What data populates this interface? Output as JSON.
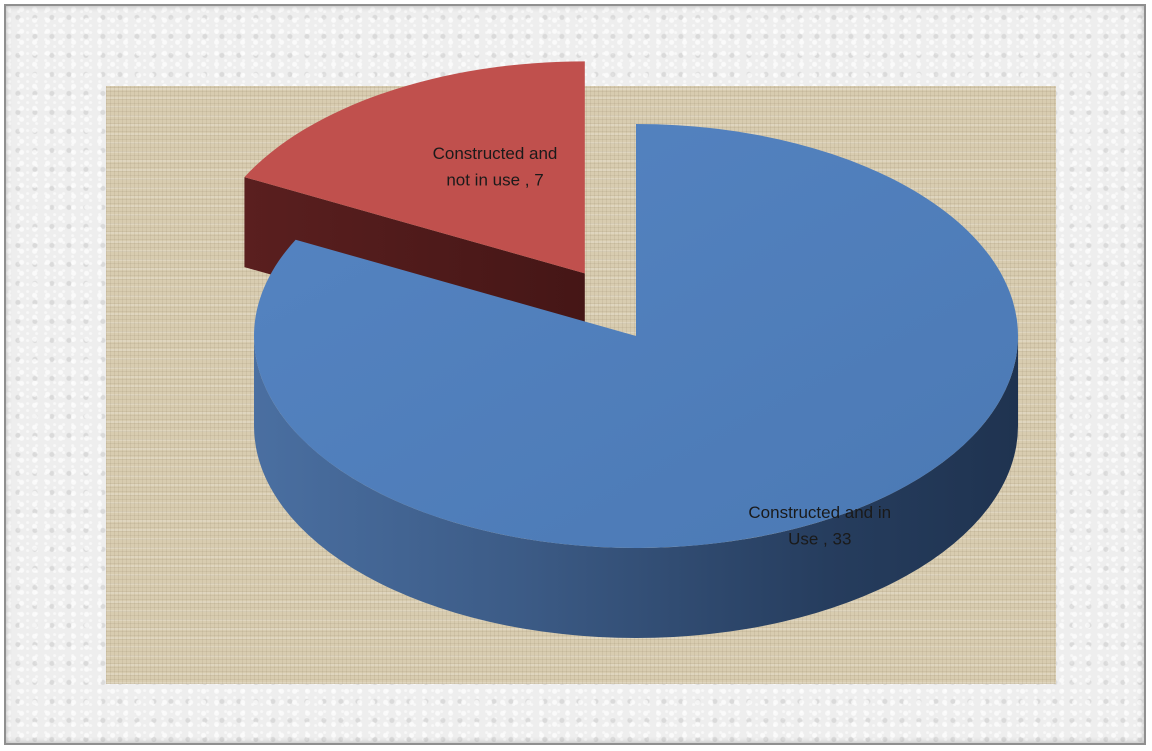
{
  "chart_data": {
    "type": "pie",
    "style": "3d-exploded",
    "title": "",
    "legend": "none",
    "series": [
      {
        "values": [
          33,
          7
        ],
        "categories": [
          "Constructed and in Use",
          "Constructed and not in use"
        ]
      }
    ],
    "slices": [
      {
        "category": "Constructed and in Use",
        "value": 33,
        "color": "#4f81bd",
        "label_lines": [
          "Constructed and in",
          "Use  , 33"
        ]
      },
      {
        "category": "Constructed and not in use",
        "value": 7,
        "color": "#c0504d",
        "label_lines": [
          "Constructed and",
          "not in use , 7"
        ]
      }
    ]
  }
}
